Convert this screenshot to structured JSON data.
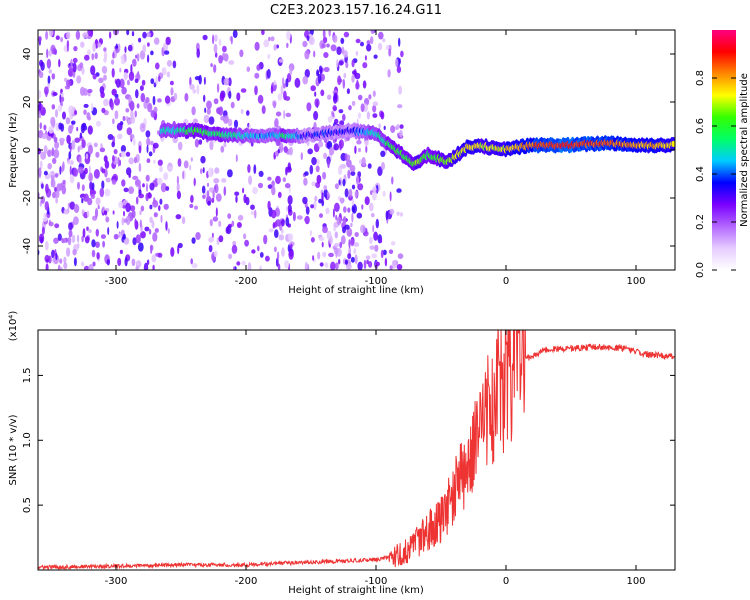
{
  "figure_title": "C2E3.2023.157.16.24.G11",
  "chart_data": [
    {
      "type": "heatmap",
      "xlabel": "Height of straight line (km)",
      "ylabel": "Frequency (Hz)",
      "xlim": [
        -360,
        130
      ],
      "ylim": [
        -50,
        50
      ],
      "x_ticks": [
        -300,
        -200,
        -100,
        0,
        100
      ],
      "y_ticks": [
        -40,
        -20,
        0,
        20,
        40
      ],
      "colorbar": {
        "label": "Normalized spectral amplitude",
        "range": [
          0.0,
          1.0
        ],
        "ticks": [
          0.0,
          0.2,
          0.4,
          0.6,
          0.8
        ],
        "colormap": [
          "#ffffff",
          "#e6ccff",
          "#b366ff",
          "#7a00ff",
          "#0000ff",
          "#00ccff",
          "#00ff66",
          "#33ff00",
          "#ffff00",
          "#ff8800",
          "#ff0000",
          "#ff0080"
        ]
      },
      "ridge": [
        {
          "x": -265,
          "y": 8,
          "a": 0.45
        },
        {
          "x": -240,
          "y": 8,
          "a": 0.6
        },
        {
          "x": -215,
          "y": 6,
          "a": 0.55
        },
        {
          "x": -185,
          "y": 6,
          "a": 0.4
        },
        {
          "x": -170,
          "y": 6,
          "a": 0.55
        },
        {
          "x": -155,
          "y": 6,
          "a": 0.35
        },
        {
          "x": -120,
          "y": 8,
          "a": 0.35
        },
        {
          "x": -100,
          "y": 7,
          "a": 0.5
        },
        {
          "x": -85,
          "y": 0,
          "a": 0.6
        },
        {
          "x": -70,
          "y": -6,
          "a": 0.65
        },
        {
          "x": -60,
          "y": -2,
          "a": 0.6
        },
        {
          "x": -45,
          "y": -5,
          "a": 0.7
        },
        {
          "x": -30,
          "y": 1,
          "a": 0.75
        },
        {
          "x": -20,
          "y": 2,
          "a": 0.7
        },
        {
          "x": -5,
          "y": 0,
          "a": 0.7
        },
        {
          "x": 20,
          "y": 2,
          "a": 0.85
        },
        {
          "x": 50,
          "y": 2,
          "a": 0.9
        },
        {
          "x": 80,
          "y": 3,
          "a": 0.85
        },
        {
          "x": 100,
          "y": 2,
          "a": 0.8
        },
        {
          "x": 130,
          "y": 2,
          "a": 0.75
        }
      ]
    },
    {
      "type": "line",
      "xlabel": "Height of straight line (km)",
      "ylabel": "SNR (10 * v/v)",
      "y_multiplier_label": "(x10⁴)",
      "xlim": [
        -360,
        130
      ],
      "ylim": [
        0,
        1.85
      ],
      "x_ticks": [
        -300,
        -200,
        -100,
        0,
        100
      ],
      "y_ticks": [
        0.5,
        1.0,
        1.5
      ],
      "y_tick_labels": [
        "0.5",
        "1.0",
        "1.5"
      ],
      "color": "#ee3333",
      "series": [
        {
          "x": [
            -360,
            -300,
            -250,
            -200,
            -150,
            -120,
            -100,
            -80,
            -70,
            -60,
            -50,
            -40,
            -30,
            -20,
            -10,
            0,
            10,
            20,
            30,
            50,
            70,
            90,
            100,
            110,
            130
          ],
          "values": [
            0.02,
            0.03,
            0.04,
            0.04,
            0.06,
            0.07,
            0.08,
            0.12,
            0.2,
            0.3,
            0.4,
            0.6,
            0.8,
            1.05,
            1.3,
            1.5,
            1.6,
            1.65,
            1.7,
            1.71,
            1.72,
            1.71,
            1.68,
            1.66,
            1.64
          ]
        }
      ]
    }
  ]
}
